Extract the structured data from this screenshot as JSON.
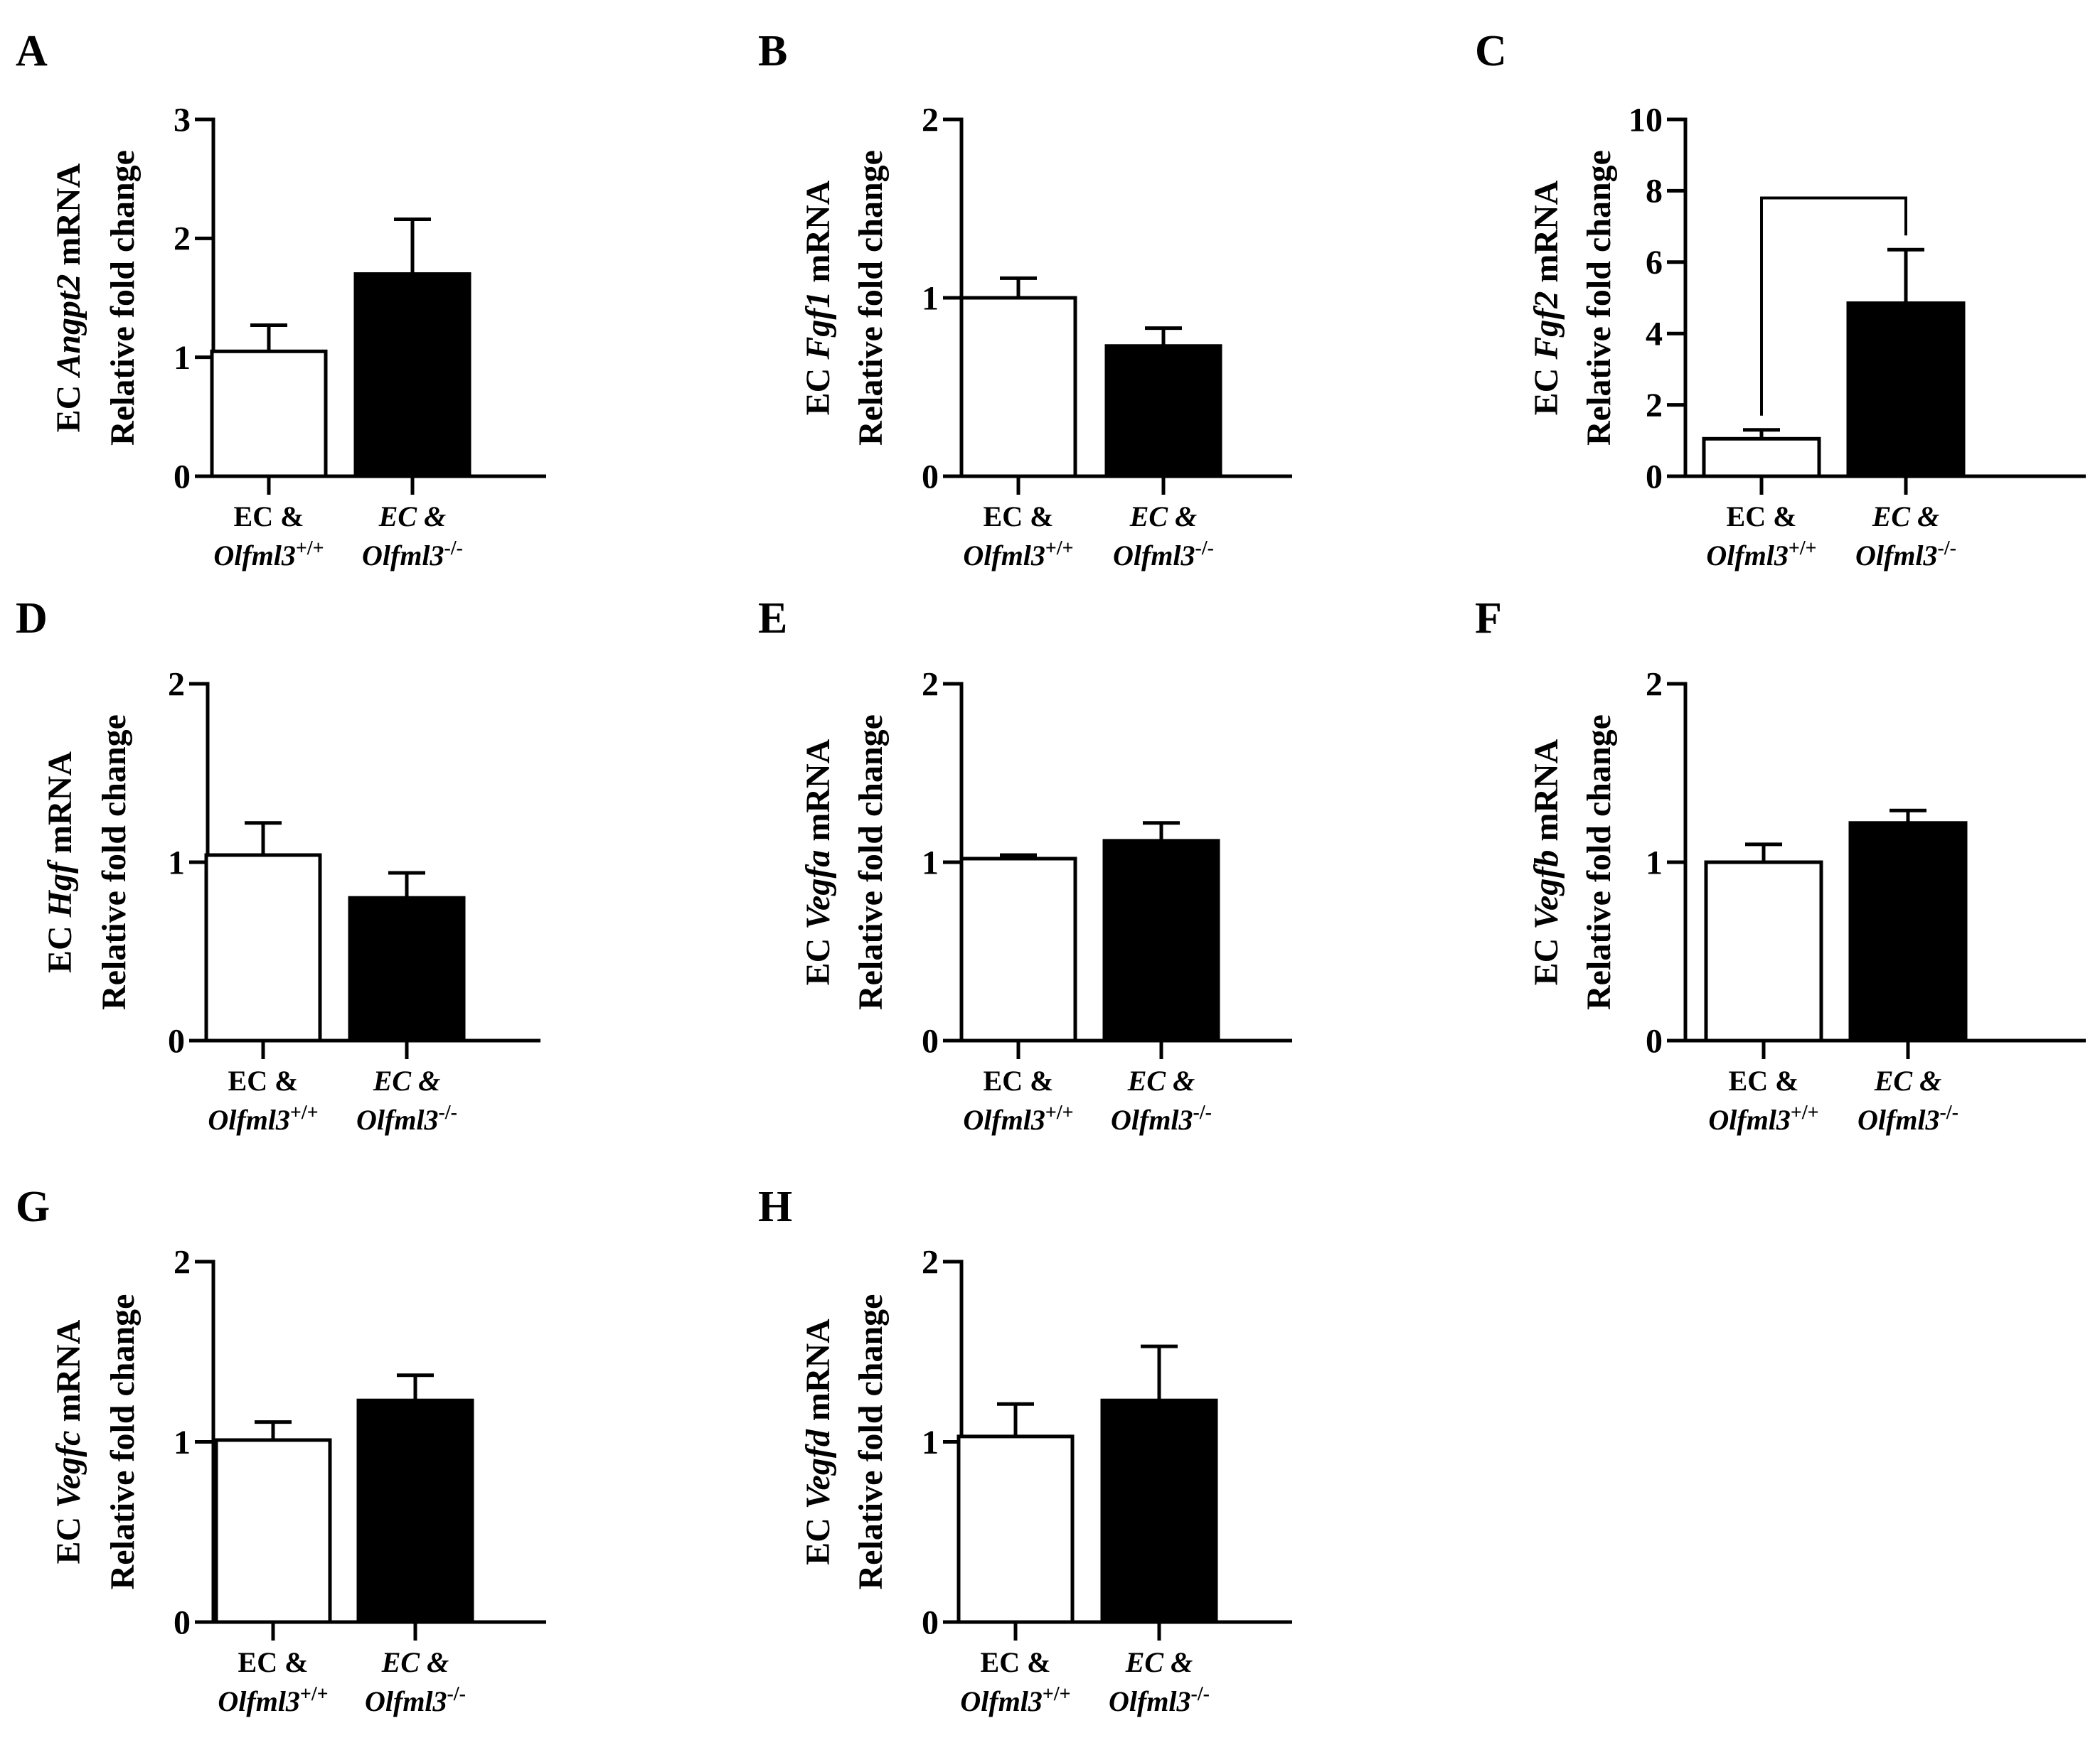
{
  "figure": {
    "bar_colors": {
      "wt": "#ffffff",
      "ko": "#000000"
    },
    "axis_color": "#000000",
    "xlabels": [
      {
        "line1": "EC &",
        "line2_base": "Olfml3",
        "line2_sup": "+/+"
      },
      {
        "line1": "EC &",
        "line2_base": "Olfml3",
        "line2_sup": "-/-"
      }
    ],
    "ylabel_line1_prefix": "EC ",
    "ylabel_line1_suffix": " mRNA",
    "ylabel_line2": "Relative fold change"
  },
  "chart_data": [
    {
      "panel": "A",
      "type": "bar",
      "gene": "Angpt2",
      "ylim": [
        0,
        3
      ],
      "ticks": [
        "0",
        "1",
        "2",
        "3"
      ],
      "categories": [
        "EC & Olfml3+/+",
        "EC & Olfml3-/-"
      ],
      "values": [
        1.05,
        1.7
      ],
      "errors": [
        0.22,
        0.46
      ],
      "significance_bracket": false
    },
    {
      "panel": "B",
      "type": "bar",
      "gene": "Fgf1",
      "ylim": [
        0,
        2
      ],
      "ticks": [
        "0",
        "1",
        "2"
      ],
      "categories": [
        "EC & Olfml3+/+",
        "EC & Olfml3-/-"
      ],
      "values": [
        1.0,
        0.73
      ],
      "errors": [
        0.11,
        0.1
      ],
      "significance_bracket": false
    },
    {
      "panel": "C",
      "type": "bar",
      "gene": "Fgf2",
      "ylim": [
        0,
        10
      ],
      "ticks": [
        "0",
        "2",
        "4",
        "6",
        "8",
        "10"
      ],
      "categories": [
        "EC & Olfml3+/+",
        "EC & Olfml3-/-"
      ],
      "values": [
        1.05,
        4.85
      ],
      "errors": [
        0.25,
        1.5
      ],
      "significance_bracket": true,
      "bracket_y": 7.8
    },
    {
      "panel": "D",
      "type": "bar",
      "gene": "Hgf",
      "ylim": [
        0,
        2
      ],
      "ticks": [
        "0",
        "1",
        "2"
      ],
      "categories": [
        "EC & Olfml3+/+",
        "EC & Olfml3-/-"
      ],
      "values": [
        1.04,
        0.8
      ],
      "errors": [
        0.18,
        0.14
      ],
      "significance_bracket": false
    },
    {
      "panel": "E",
      "type": "bar",
      "gene": "Vegfa",
      "ylim": [
        0,
        2
      ],
      "ticks": [
        "0",
        "1",
        "2"
      ],
      "categories": [
        "EC & Olfml3+/+",
        "EC & Olfml3-/-"
      ],
      "values": [
        1.02,
        1.12
      ],
      "errors": [
        0.02,
        0.1
      ],
      "significance_bracket": false
    },
    {
      "panel": "F",
      "type": "bar",
      "gene": "Vegfb",
      "ylim": [
        0,
        2
      ],
      "ticks": [
        "0",
        "1",
        "2"
      ],
      "categories": [
        "EC & Olfml3+/+",
        "EC & Olfml3-/-"
      ],
      "values": [
        1.0,
        1.22
      ],
      "errors": [
        0.1,
        0.07
      ],
      "significance_bracket": false
    },
    {
      "panel": "G",
      "type": "bar",
      "gene": "Vegfc",
      "ylim": [
        0,
        2
      ],
      "ticks": [
        "0",
        "1",
        "2"
      ],
      "categories": [
        "EC & Olfml3+/+",
        "EC & Olfml3-/-"
      ],
      "values": [
        1.01,
        1.23
      ],
      "errors": [
        0.1,
        0.14
      ],
      "significance_bracket": false
    },
    {
      "panel": "H",
      "type": "bar",
      "gene": "Vegfd",
      "ylim": [
        0,
        2
      ],
      "ticks": [
        "0",
        "1",
        "2"
      ],
      "categories": [
        "EC & Olfml3+/+",
        "EC & Olfml3-/-"
      ],
      "values": [
        1.03,
        1.23
      ],
      "errors": [
        0.18,
        0.3
      ],
      "significance_bracket": false
    }
  ]
}
